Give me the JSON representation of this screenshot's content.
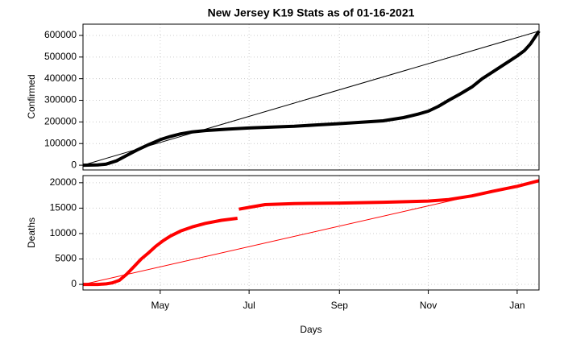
{
  "chart_data": [
    {
      "type": "line",
      "title": "New Jersey K19 Stats as of 01-16-2021",
      "ylabel": "Confirmed",
      "xlim": [
        0,
        313
      ],
      "ylim": [
        -22000,
        652000
      ],
      "yticks": [
        0,
        100000,
        200000,
        300000,
        400000,
        500000,
        600000
      ],
      "grid": true,
      "series": [
        {
          "color": "#000000",
          "line_width": 4,
          "x": [
            0,
            10,
            16,
            23,
            30,
            37,
            45,
            53,
            60,
            67,
            75,
            84,
            100,
            114,
            130,
            145,
            160,
            176,
            190,
            206,
            220,
            230,
            237,
            244,
            251,
            259,
            267,
            274,
            281,
            290,
            298,
            303,
            307,
            313
          ],
          "values": [
            0,
            1000,
            5000,
            20000,
            45000,
            70000,
            95000,
            118000,
            133000,
            145000,
            154000,
            160000,
            167000,
            172000,
            176000,
            180000,
            186000,
            192000,
            198000,
            205000,
            220000,
            236000,
            250000,
            272000,
            300000,
            330000,
            362000,
            400000,
            430000,
            470000,
            505000,
            530000,
            560000,
            620000
          ]
        },
        {
          "color": "#000000",
          "line_width": 1,
          "x": [
            0,
            313
          ],
          "values": [
            0,
            620000
          ]
        }
      ]
    },
    {
      "type": "line",
      "ylabel": "Deaths",
      "xlabel": "Days",
      "xlim": [
        0,
        313
      ],
      "ylim": [
        -1100,
        21400
      ],
      "yticks": [
        0,
        5000,
        10000,
        15000,
        20000
      ],
      "grid": true,
      "xticks": [
        {
          "value": 53,
          "label": "May"
        },
        {
          "value": 114,
          "label": "Jul"
        },
        {
          "value": 176,
          "label": "Sep"
        },
        {
          "value": 237,
          "label": "Nov"
        },
        {
          "value": 298,
          "label": "Jan"
        }
      ],
      "series": [
        {
          "color": "#ff0000",
          "line_width": 4,
          "x": [
            0,
            10,
            16,
            20,
            25,
            30,
            35,
            40,
            45,
            50,
            55,
            60,
            67,
            75,
            84,
            95,
            106,
            107,
            107,
            115,
            125,
            145,
            176,
            206,
            237,
            251,
            267,
            281,
            298,
            313
          ],
          "values": [
            0,
            0,
            100,
            300,
            800,
            2000,
            3500,
            5000,
            6200,
            7500,
            8600,
            9500,
            10500,
            11300,
            12000,
            12600,
            13000,
            null,
            14800,
            15200,
            15700,
            15900,
            16000,
            16150,
            16400,
            16700,
            17400,
            18300,
            19300,
            20400
          ]
        },
        {
          "color": "#ff0000",
          "line_width": 1,
          "x": [
            0,
            313
          ],
          "values": [
            0,
            20400
          ]
        }
      ]
    }
  ]
}
